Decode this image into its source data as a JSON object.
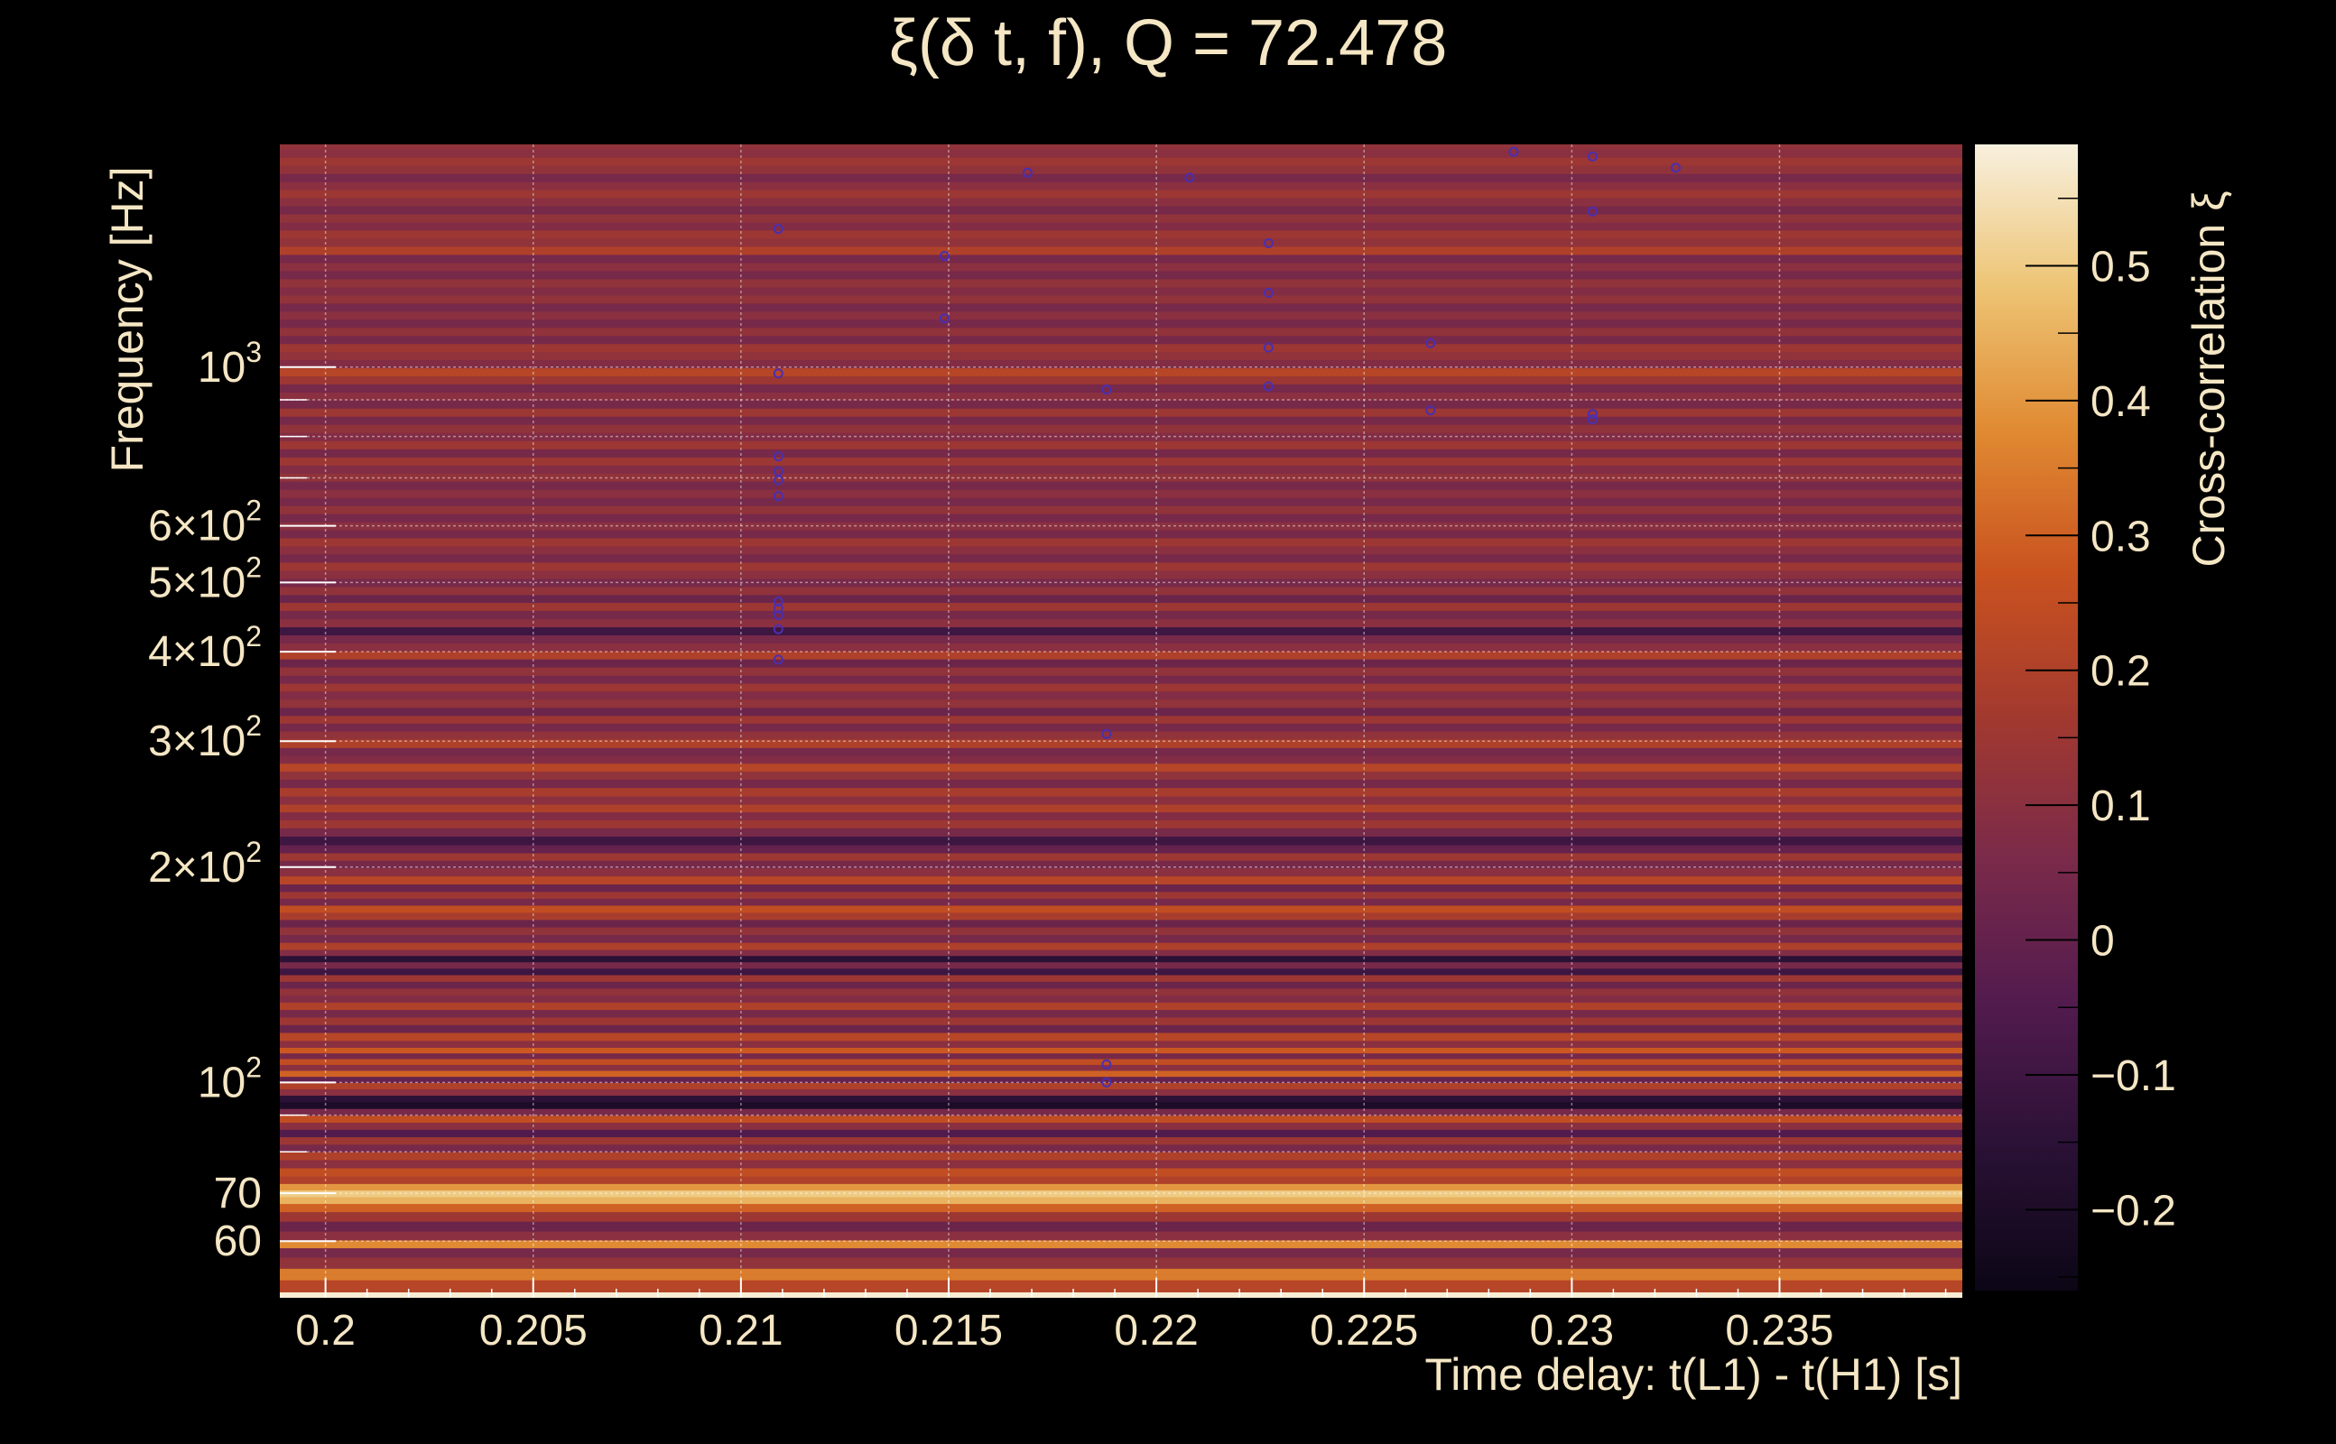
{
  "chart_data": {
    "type": "heatmap",
    "title": "ξ(δ t, f), Q = 72.478",
    "xlabel": "Time delay: t(L1) - t(H1) [s]",
    "ylabel": "Frequency [Hz]",
    "colorbar_label": "Cross-correlation ξ",
    "x_scale": "linear",
    "y_scale": "log",
    "xlim": [
      0.1989,
      0.2394
    ],
    "ylim": [
      50,
      2048
    ],
    "clim": [
      -0.26,
      0.59
    ],
    "grid": true,
    "x_ticks": [
      {
        "value": 0.2,
        "label": "0.2"
      },
      {
        "value": 0.205,
        "label": "0.205"
      },
      {
        "value": 0.21,
        "label": "0.21"
      },
      {
        "value": 0.215,
        "label": "0.215"
      },
      {
        "value": 0.22,
        "label": "0.22"
      },
      {
        "value": 0.225,
        "label": "0.225"
      },
      {
        "value": 0.23,
        "label": "0.23"
      },
      {
        "value": 0.235,
        "label": "0.235"
      }
    ],
    "y_ticks": [
      {
        "value": 60,
        "label": "60"
      },
      {
        "value": 70,
        "label": "70"
      },
      {
        "value": 100,
        "mantissa": "",
        "base": "10",
        "exp": "2"
      },
      {
        "value": 200,
        "mantissa": "2×",
        "base": "10",
        "exp": "2"
      },
      {
        "value": 300,
        "mantissa": "3×",
        "base": "10",
        "exp": "2"
      },
      {
        "value": 400,
        "mantissa": "4×",
        "base": "10",
        "exp": "2"
      },
      {
        "value": 500,
        "mantissa": "5×",
        "base": "10",
        "exp": "2"
      },
      {
        "value": 600,
        "mantissa": "6×",
        "base": "10",
        "exp": "2"
      },
      {
        "value": 1000,
        "mantissa": "",
        "base": "10",
        "exp": "3"
      }
    ],
    "y_minor_ticks": [
      80,
      90,
      700,
      800,
      900
    ],
    "colorbar_ticks": [
      {
        "value": -0.2,
        "label": "−0.2"
      },
      {
        "value": -0.1,
        "label": "−0.1"
      },
      {
        "value": 0,
        "label": "0"
      },
      {
        "value": 0.1,
        "label": "0.1"
      },
      {
        "value": 0.2,
        "label": "0.2"
      },
      {
        "value": 0.3,
        "label": "0.3"
      },
      {
        "value": 0.4,
        "label": "0.4"
      },
      {
        "value": 0.5,
        "label": "0.5"
      }
    ],
    "colormap": [
      "#000004",
      "#280b54",
      "#65156e",
      "#9f2a63",
      "#d44842",
      "#f57d15",
      "#fac228",
      "#fcffa4"
    ],
    "colormap_display": [
      "#0c0616",
      "#2a1135",
      "#521b4e",
      "#7a2a4a",
      "#a2392f",
      "#c9521f",
      "#e08a32",
      "#edc474",
      "#f8f0de"
    ],
    "frequency_bands": [
      {
        "f": 52,
        "v": 0.22
      },
      {
        "f": 54,
        "v": 0.35
      },
      {
        "f": 56,
        "v": 0.12
      },
      {
        "f": 58,
        "v": 0.05
      },
      {
        "f": 59.5,
        "v": 0.38
      },
      {
        "f": 61,
        "v": 0.1
      },
      {
        "f": 63,
        "v": 0.02
      },
      {
        "f": 65,
        "v": 0.15
      },
      {
        "f": 67,
        "v": 0.3
      },
      {
        "f": 68.5,
        "v": 0.45
      },
      {
        "f": 70,
        "v": 0.5
      },
      {
        "f": 71.5,
        "v": 0.4
      },
      {
        "f": 73,
        "v": 0.2
      },
      {
        "f": 75,
        "v": 0.25
      },
      {
        "f": 77,
        "v": 0.1
      },
      {
        "f": 79,
        "v": 0.2
      },
      {
        "f": 81,
        "v": 0.05
      },
      {
        "f": 83,
        "v": 0.15
      },
      {
        "f": 85,
        "v": -0.05
      },
      {
        "f": 87,
        "v": 0.1
      },
      {
        "f": 89,
        "v": 0.25
      },
      {
        "f": 91,
        "v": 0.05
      },
      {
        "f": 93,
        "v": -0.2
      },
      {
        "f": 95,
        "v": -0.15
      },
      {
        "f": 97,
        "v": 0.1
      },
      {
        "f": 99,
        "v": 0.2
      },
      {
        "f": 101,
        "v": 0.0
      },
      {
        "f": 103,
        "v": 0.3
      },
      {
        "f": 105,
        "v": 0.1
      },
      {
        "f": 107,
        "v": 0.25
      },
      {
        "f": 109,
        "v": 0.05
      },
      {
        "f": 111,
        "v": 0.28
      },
      {
        "f": 113,
        "v": 0.1
      },
      {
        "f": 116,
        "v": 0.22
      },
      {
        "f": 119,
        "v": 0.02
      },
      {
        "f": 122,
        "v": 0.15
      },
      {
        "f": 125,
        "v": 0.05
      },
      {
        "f": 128,
        "v": 0.2
      },
      {
        "f": 131,
        "v": 0.08
      },
      {
        "f": 134,
        "v": 0.12
      },
      {
        "f": 137,
        "v": 0.02
      },
      {
        "f": 140,
        "v": 0.15
      },
      {
        "f": 143,
        "v": -0.1
      },
      {
        "f": 146,
        "v": 0.05
      },
      {
        "f": 149,
        "v": -0.15
      },
      {
        "f": 152,
        "v": 0.08
      },
      {
        "f": 155,
        "v": 0.2
      },
      {
        "f": 159,
        "v": 0.05
      },
      {
        "f": 163,
        "v": 0.12
      },
      {
        "f": 167,
        "v": 0.02
      },
      {
        "f": 171,
        "v": 0.18
      },
      {
        "f": 175,
        "v": 0.25
      },
      {
        "f": 179,
        "v": 0.05
      },
      {
        "f": 183,
        "v": 0.15
      },
      {
        "f": 187,
        "v": 0.02
      },
      {
        "f": 192,
        "v": 0.22
      },
      {
        "f": 197,
        "v": 0.1
      },
      {
        "f": 202,
        "v": 0.05
      },
      {
        "f": 207,
        "v": 0.15
      },
      {
        "f": 212,
        "v": 0.0
      },
      {
        "f": 218,
        "v": -0.1
      },
      {
        "f": 224,
        "v": 0.05
      },
      {
        "f": 230,
        "v": 0.15
      },
      {
        "f": 236,
        "v": 0.08
      },
      {
        "f": 242,
        "v": 0.2
      },
      {
        "f": 248,
        "v": 0.1
      },
      {
        "f": 255,
        "v": 0.18
      },
      {
        "f": 262,
        "v": 0.05
      },
      {
        "f": 269,
        "v": 0.12
      },
      {
        "f": 276,
        "v": 0.22
      },
      {
        "f": 283,
        "v": 0.08
      },
      {
        "f": 290,
        "v": 0.05
      },
      {
        "f": 298,
        "v": 0.2
      },
      {
        "f": 306,
        "v": 0.12
      },
      {
        "f": 314,
        "v": 0.05
      },
      {
        "f": 322,
        "v": 0.15
      },
      {
        "f": 330,
        "v": 0.02
      },
      {
        "f": 339,
        "v": 0.12
      },
      {
        "f": 348,
        "v": 0.08
      },
      {
        "f": 357,
        "v": 0.15
      },
      {
        "f": 366,
        "v": 0.05
      },
      {
        "f": 376,
        "v": 0.12
      },
      {
        "f": 386,
        "v": 0.02
      },
      {
        "f": 396,
        "v": 0.2
      },
      {
        "f": 406,
        "v": 0.1
      },
      {
        "f": 417,
        "v": 0.05
      },
      {
        "f": 428,
        "v": -0.1
      },
      {
        "f": 439,
        "v": 0.1
      },
      {
        "f": 451,
        "v": 0.05
      },
      {
        "f": 463,
        "v": 0.15
      },
      {
        "f": 475,
        "v": 0.02
      },
      {
        "f": 487,
        "v": 0.12
      },
      {
        "f": 500,
        "v": 0.05
      },
      {
        "f": 513,
        "v": 0.1
      },
      {
        "f": 527,
        "v": 0.15
      },
      {
        "f": 541,
        "v": 0.05
      },
      {
        "f": 555,
        "v": 0.1
      },
      {
        "f": 570,
        "v": 0.15
      },
      {
        "f": 585,
        "v": 0.05
      },
      {
        "f": 600,
        "v": 0.1
      },
      {
        "f": 616,
        "v": 0.05
      },
      {
        "f": 632,
        "v": 0.12
      },
      {
        "f": 649,
        "v": 0.05
      },
      {
        "f": 666,
        "v": 0.1
      },
      {
        "f": 684,
        "v": 0.05
      },
      {
        "f": 702,
        "v": 0.12
      },
      {
        "f": 720,
        "v": 0.08
      },
      {
        "f": 739,
        "v": 0.15
      },
      {
        "f": 759,
        "v": 0.05
      },
      {
        "f": 779,
        "v": 0.15
      },
      {
        "f": 800,
        "v": 0.08
      },
      {
        "f": 821,
        "v": 0.12
      },
      {
        "f": 843,
        "v": 0.05
      },
      {
        "f": 865,
        "v": 0.15
      },
      {
        "f": 888,
        "v": 0.05
      },
      {
        "f": 911,
        "v": 0.1
      },
      {
        "f": 935,
        "v": 0.05
      },
      {
        "f": 960,
        "v": 0.15
      },
      {
        "f": 985,
        "v": 0.22
      },
      {
        "f": 1011,
        "v": 0.08
      },
      {
        "f": 1038,
        "v": 0.12
      },
      {
        "f": 1065,
        "v": 0.15
      },
      {
        "f": 1093,
        "v": 0.05
      },
      {
        "f": 1122,
        "v": 0.12
      },
      {
        "f": 1152,
        "v": 0.05
      },
      {
        "f": 1182,
        "v": 0.1
      },
      {
        "f": 1213,
        "v": 0.05
      },
      {
        "f": 1245,
        "v": 0.12
      },
      {
        "f": 1278,
        "v": 0.08
      },
      {
        "f": 1312,
        "v": 0.12
      },
      {
        "f": 1347,
        "v": 0.05
      },
      {
        "f": 1382,
        "v": 0.1
      },
      {
        "f": 1419,
        "v": 0.05
      },
      {
        "f": 1456,
        "v": 0.2
      },
      {
        "f": 1495,
        "v": 0.12
      },
      {
        "f": 1534,
        "v": 0.15
      },
      {
        "f": 1575,
        "v": 0.08
      },
      {
        "f": 1616,
        "v": 0.12
      },
      {
        "f": 1659,
        "v": 0.05
      },
      {
        "f": 1703,
        "v": 0.1
      },
      {
        "f": 1748,
        "v": 0.15
      },
      {
        "f": 1794,
        "v": 0.1
      },
      {
        "f": 1841,
        "v": 0.05
      },
      {
        "f": 1890,
        "v": 0.12
      },
      {
        "f": 1940,
        "v": 0.15
      },
      {
        "f": 1991,
        "v": 0.1
      },
      {
        "f": 2048,
        "v": 0.12
      }
    ],
    "markers": [
      {
        "x": 0.2109,
        "y": 1560
      },
      {
        "x": 0.2109,
        "y": 980
      },
      {
        "x": 0.2109,
        "y": 750
      },
      {
        "x": 0.2109,
        "y": 715
      },
      {
        "x": 0.2109,
        "y": 695
      },
      {
        "x": 0.2109,
        "y": 660
      },
      {
        "x": 0.2109,
        "y": 470
      },
      {
        "x": 0.2109,
        "y": 460
      },
      {
        "x": 0.2109,
        "y": 450
      },
      {
        "x": 0.2109,
        "y": 430
      },
      {
        "x": 0.2109,
        "y": 390
      },
      {
        "x": 0.2149,
        "y": 1430
      },
      {
        "x": 0.2149,
        "y": 1170
      },
      {
        "x": 0.2169,
        "y": 1870
      },
      {
        "x": 0.2188,
        "y": 930
      },
      {
        "x": 0.2188,
        "y": 307
      },
      {
        "x": 0.2188,
        "y": 106
      },
      {
        "x": 0.2188,
        "y": 100
      },
      {
        "x": 0.2208,
        "y": 1840
      },
      {
        "x": 0.2227,
        "y": 1490
      },
      {
        "x": 0.2227,
        "y": 1270
      },
      {
        "x": 0.2227,
        "y": 1065
      },
      {
        "x": 0.2227,
        "y": 940
      },
      {
        "x": 0.2266,
        "y": 1080
      },
      {
        "x": 0.2266,
        "y": 870
      },
      {
        "x": 0.2286,
        "y": 2000
      },
      {
        "x": 0.2305,
        "y": 1970
      },
      {
        "x": 0.2305,
        "y": 1650
      },
      {
        "x": 0.2305,
        "y": 860
      },
      {
        "x": 0.2305,
        "y": 845
      },
      {
        "x": 0.2325,
        "y": 1900
      }
    ]
  }
}
